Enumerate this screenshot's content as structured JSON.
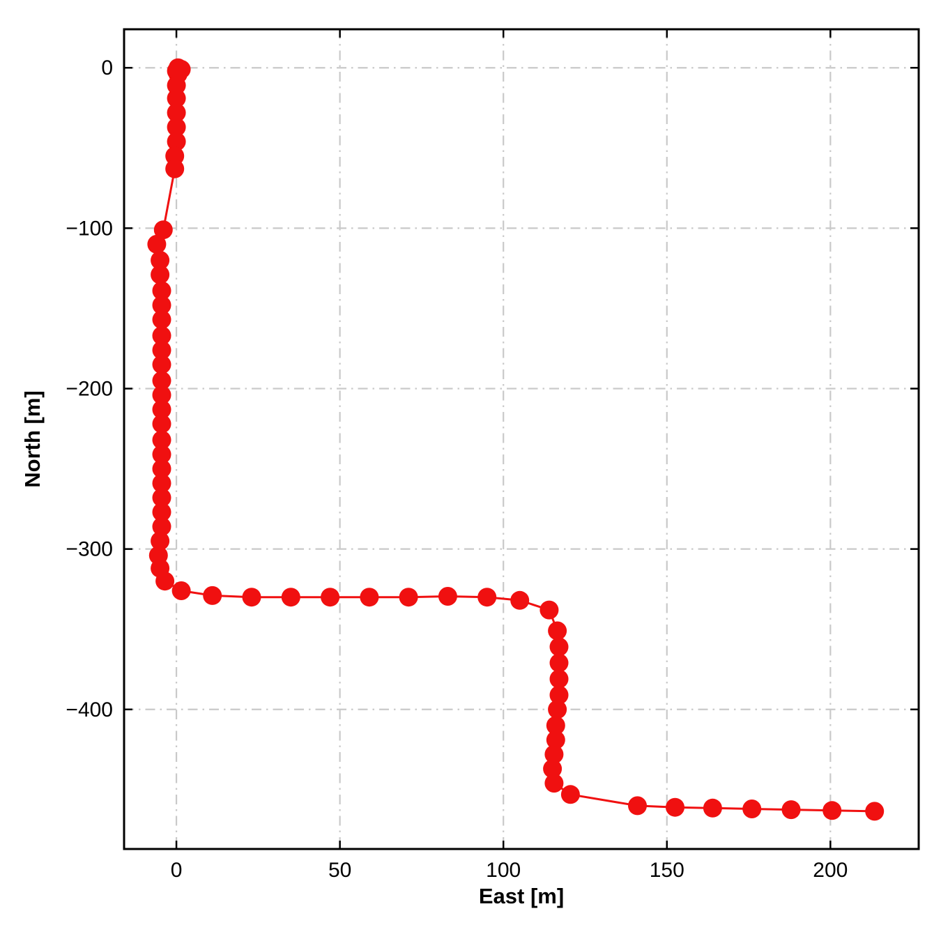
{
  "figure": {
    "background": "#ffffff"
  },
  "chart_data": {
    "type": "line",
    "series_name": "trajectory",
    "marker": "circle",
    "line_color": "#f01010",
    "marker_color": "#f01010",
    "grid_color": "#c9c9c9",
    "axis_color": "#000000",
    "xlabel": "East [m]",
    "ylabel": "North [m]",
    "xlim": [
      -16,
      227
    ],
    "ylim": [
      -487,
      24
    ],
    "xticks": [
      0,
      50,
      100,
      150,
      200
    ],
    "yticks": [
      0,
      -100,
      -200,
      -300,
      -400
    ],
    "grid": true,
    "grid_style": "dash-dot",
    "points": [
      [
        0.5,
        0
      ],
      [
        1.5,
        -1
      ],
      [
        0,
        -2
      ],
      [
        0.5,
        -4
      ],
      [
        0,
        -11
      ],
      [
        0,
        -19
      ],
      [
        0,
        -28
      ],
      [
        0,
        -37
      ],
      [
        0,
        -46
      ],
      [
        -0.5,
        -55
      ],
      [
        -0.5,
        -63
      ],
      [
        -4,
        -101
      ],
      [
        -6,
        -110
      ],
      [
        -5,
        -120
      ],
      [
        -5,
        -129
      ],
      [
        -4.5,
        -139
      ],
      [
        -4.5,
        -148
      ],
      [
        -4.5,
        -157
      ],
      [
        -4.5,
        -167
      ],
      [
        -4.5,
        -176
      ],
      [
        -4.5,
        -185
      ],
      [
        -4.5,
        -195
      ],
      [
        -4.5,
        -204
      ],
      [
        -4.5,
        -213
      ],
      [
        -4.5,
        -222
      ],
      [
        -4.5,
        -232
      ],
      [
        -4.5,
        -241
      ],
      [
        -4.5,
        -250
      ],
      [
        -4.5,
        -259
      ],
      [
        -4.5,
        -268
      ],
      [
        -4.5,
        -277
      ],
      [
        -4.5,
        -286
      ],
      [
        -5,
        -295
      ],
      [
        -5.5,
        -304
      ],
      [
        -5,
        -312
      ],
      [
        -3.5,
        -320
      ],
      [
        1.5,
        -326
      ],
      [
        11,
        -329
      ],
      [
        23,
        -330
      ],
      [
        35,
        -330
      ],
      [
        47,
        -330
      ],
      [
        59,
        -330
      ],
      [
        71,
        -330
      ],
      [
        83,
        -329.5
      ],
      [
        95,
        -330
      ],
      [
        105,
        -332
      ],
      [
        114,
        -338
      ],
      [
        116.5,
        -351
      ],
      [
        117,
        -361
      ],
      [
        117,
        -371
      ],
      [
        117,
        -381
      ],
      [
        117,
        -391
      ],
      [
        116.5,
        -400
      ],
      [
        116,
        -410
      ],
      [
        116,
        -419
      ],
      [
        115.5,
        -428
      ],
      [
        115,
        -437
      ],
      [
        115.5,
        -446
      ],
      [
        120.5,
        -453
      ],
      [
        141,
        -460
      ],
      [
        152.5,
        -461
      ],
      [
        164,
        -461.5
      ],
      [
        176,
        -462
      ],
      [
        188,
        -462.5
      ],
      [
        200.5,
        -463
      ],
      [
        213.5,
        -463.5
      ]
    ]
  }
}
